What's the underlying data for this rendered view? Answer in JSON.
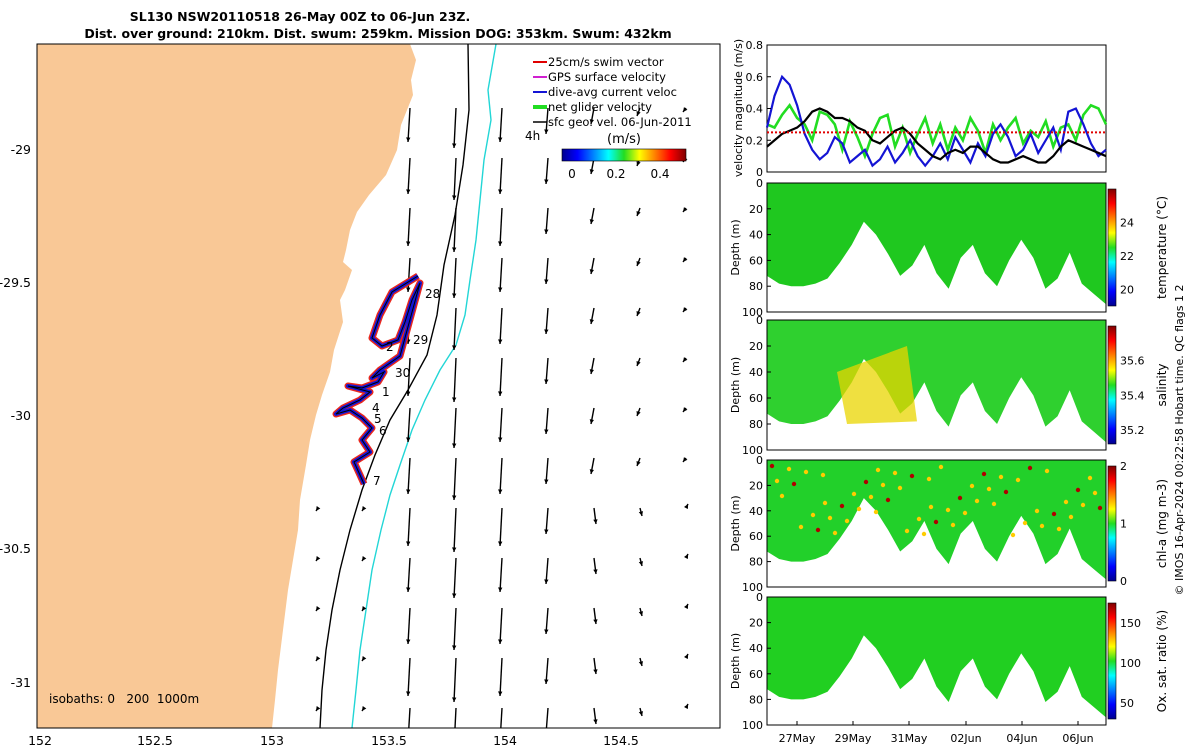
{
  "header": {
    "title_line1": "SL130 NSW20110518 26-May 00Z to 06-Jun 23Z.",
    "title_line2": "Dist. over ground: 210km. Dist. swum: 259km. Mission DOG: 353km. Swum: 432km"
  },
  "colors": {
    "land": "#f9c896",
    "shelf_isobath_200": "#000000",
    "isobath_1000": "#22d6d6",
    "track_red": "#e8281e",
    "track_blue": "#1414d4",
    "net_velocity": "#22dd22",
    "swim_red": "#e00000"
  },
  "map": {
    "xticks": [
      "152",
      "152.5",
      "153",
      "153.5",
      "154",
      "154.5"
    ],
    "yticks": [
      "-29",
      "-29.5",
      "-30",
      "-30.5",
      "-31"
    ],
    "isobaths_label": "isobaths: 0   200  1000m",
    "scale_label": "4h",
    "legend": [
      {
        "label": "25cm/s swim vector",
        "color": "#e00000"
      },
      {
        "label": "GPS surface velocity",
        "color": "#d020d0"
      },
      {
        "label": "dive-avg current veloc",
        "color": "#1414d4"
      },
      {
        "label": "net glider velocity",
        "color": "#22dd22"
      },
      {
        "label": "sfc geo. vel. 06-Jun-2011",
        "color": "#000000"
      }
    ],
    "colorbar": {
      "title": "(m/s)",
      "ticks": [
        "0",
        "0.2",
        "0.4"
      ]
    },
    "day_labels": [
      {
        "text": "28"
      },
      {
        "text": "29"
      },
      {
        "text": "2"
      },
      {
        "text": "30"
      },
      {
        "text": "1"
      },
      {
        "text": "4"
      },
      {
        "text": "5"
      },
      {
        "text": "6"
      },
      {
        "text": "7"
      }
    ]
  },
  "chart_data": [
    {
      "type": "line",
      "ylabel": "velocity magnitude (m/s)",
      "ylim": [
        0,
        0.8
      ],
      "yticks": [
        "0",
        "0.2",
        "0.4",
        "0.6",
        "0.8"
      ],
      "series": [
        {
          "name": "net glider velocity",
          "color": "#22dd22",
          "values": [
            0.3,
            0.28,
            0.36,
            0.42,
            0.34,
            0.3,
            0.2,
            0.38,
            0.36,
            0.3,
            0.14,
            0.32,
            0.22,
            0.1,
            0.24,
            0.34,
            0.36,
            0.16,
            0.28,
            0.12,
            0.24,
            0.34,
            0.18,
            0.3,
            0.14,
            0.28,
            0.2,
            0.34,
            0.26,
            0.12,
            0.3,
            0.2,
            0.28,
            0.34,
            0.18,
            0.26,
            0.22,
            0.32,
            0.16,
            0.28,
            0.3,
            0.2,
            0.36,
            0.42,
            0.4,
            0.3
          ]
        },
        {
          "name": "dive-avg current veloc",
          "color": "#1414d4",
          "values": [
            0.28,
            0.48,
            0.6,
            0.55,
            0.42,
            0.24,
            0.14,
            0.08,
            0.12,
            0.22,
            0.18,
            0.06,
            0.1,
            0.14,
            0.04,
            0.08,
            0.16,
            0.06,
            0.12,
            0.2,
            0.1,
            0.04,
            0.1,
            0.18,
            0.08,
            0.22,
            0.14,
            0.06,
            0.18,
            0.1,
            0.24,
            0.3,
            0.22,
            0.1,
            0.14,
            0.24,
            0.12,
            0.2,
            0.28,
            0.14,
            0.38,
            0.4,
            0.3,
            0.18,
            0.1,
            0.14
          ]
        },
        {
          "name": "GPS surface velocity",
          "color": "#000000",
          "values": [
            0.16,
            0.2,
            0.24,
            0.26,
            0.28,
            0.32,
            0.38,
            0.4,
            0.38,
            0.34,
            0.34,
            0.32,
            0.28,
            0.26,
            0.2,
            0.18,
            0.22,
            0.26,
            0.28,
            0.24,
            0.18,
            0.14,
            0.1,
            0.08,
            0.12,
            0.14,
            0.12,
            0.16,
            0.16,
            0.12,
            0.08,
            0.06,
            0.06,
            0.08,
            0.1,
            0.08,
            0.06,
            0.06,
            0.1,
            0.16,
            0.2,
            0.18,
            0.16,
            0.14,
            0.12,
            0.1
          ]
        },
        {
          "name": "25cm/s swim vector",
          "color": "#e00000",
          "values": [
            0.25,
            0.25
          ]
        }
      ]
    },
    {
      "type": "heatmap",
      "ylabel": "Depth (m)",
      "ylim": [
        0,
        100
      ],
      "yticks": [
        "0",
        "20",
        "40",
        "60",
        "80",
        "100"
      ],
      "cbar_label": "temperature (°C)",
      "cbar_ticks": [
        "20",
        "22",
        "24"
      ],
      "clim": [
        19,
        26
      ]
    },
    {
      "type": "heatmap",
      "ylabel": "Depth (m)",
      "ylim": [
        0,
        100
      ],
      "yticks": [
        "0",
        "20",
        "40",
        "60",
        "80",
        "100"
      ],
      "cbar_label": "salinity",
      "cbar_ticks": [
        "35.2",
        "35.4",
        "35.6"
      ],
      "clim": [
        35.12,
        35.8
      ]
    },
    {
      "type": "heatmap",
      "ylabel": "Depth (m)",
      "ylim": [
        0,
        100
      ],
      "yticks": [
        "0",
        "20",
        "40",
        "60",
        "80",
        "100"
      ],
      "cbar_label": "chl-a (mg m-3)",
      "cbar_ticks": [
        "0",
        "1",
        "2"
      ],
      "clim": [
        0,
        2
      ]
    },
    {
      "type": "heatmap",
      "ylabel": "Depth (m)",
      "ylim": [
        0,
        100
      ],
      "yticks": [
        "0",
        "20",
        "40",
        "60",
        "80",
        "100"
      ],
      "cbar_label": "Ox. sat. ratio (%)",
      "cbar_ticks": [
        "50",
        "100",
        "150"
      ],
      "clim": [
        30,
        175
      ],
      "xticks": [
        "27May",
        "29May",
        "31May",
        "02Jun",
        "04Jun",
        "06Jun"
      ]
    }
  ],
  "footer": {
    "side_note": "© IMOS 16-Apr-2024 00:22:58 Hobart time. QC flags 1  2"
  }
}
